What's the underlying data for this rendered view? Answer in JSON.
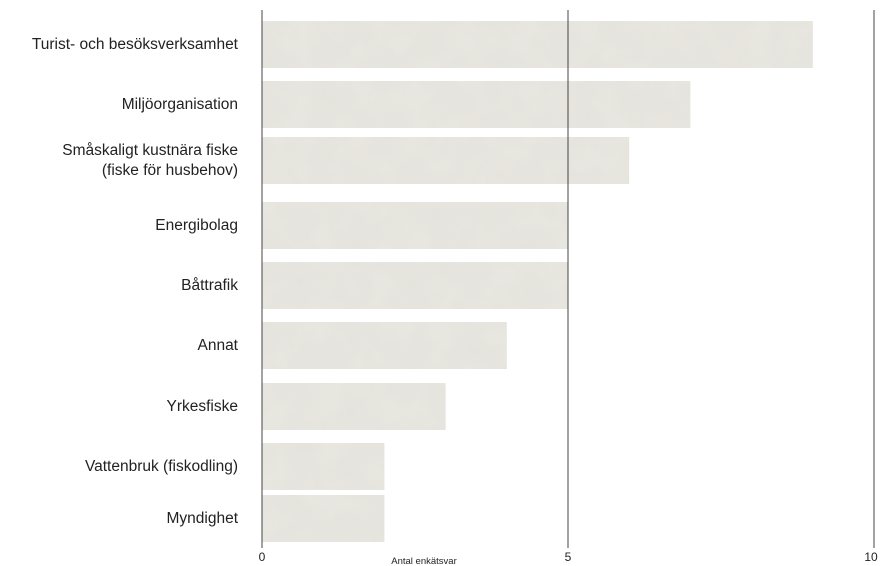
{
  "chart_data": {
    "type": "bar",
    "orientation": "horizontal",
    "categories": [
      [
        "Turist- och besöksverksamhet"
      ],
      [
        "Miljöorganisation"
      ],
      [
        "Småskaligt kustnära fiske",
        "(fiske för husbehov)"
      ],
      [
        "Energibolag"
      ],
      [
        "Båttrafik"
      ],
      [
        "Annat"
      ],
      [
        "Yrkesfiske"
      ],
      [
        "Vattenbruk (fiskodling)"
      ],
      [
        "Myndighet"
      ]
    ],
    "values": [
      9,
      7,
      6,
      5,
      5,
      4,
      3,
      2,
      2
    ],
    "xlim": [
      0,
      10
    ],
    "x_ticks": [
      "0",
      "5",
      "10"
    ],
    "xlabel": "Antal enkätsvar",
    "grid": "vertical lines at 0, 5 and 10",
    "bar_color": "#e9e7e1",
    "gridline_color": "#444444"
  }
}
